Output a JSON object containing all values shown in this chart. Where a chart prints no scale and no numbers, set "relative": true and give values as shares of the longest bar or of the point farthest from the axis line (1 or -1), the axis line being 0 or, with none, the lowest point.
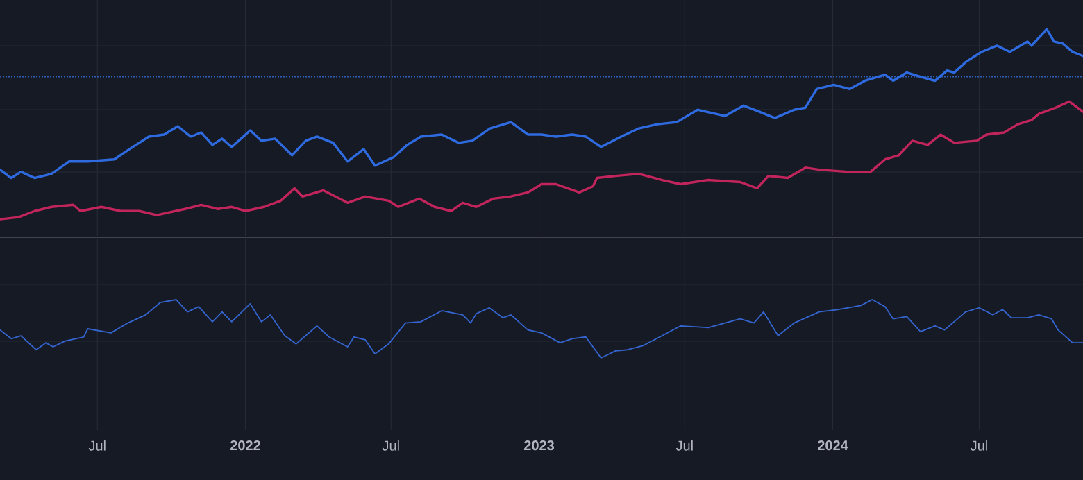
{
  "chart_data": [
    {
      "type": "line",
      "relative": true,
      "grid": true,
      "tick_labels": false,
      "xlim": [
        "2021-03-02",
        "2024-11-07"
      ],
      "xticks": [
        {
          "value": "2021-07-01",
          "label": null
        },
        {
          "value": "2022-01-01",
          "label": null
        },
        {
          "value": "2022-07-01",
          "label": null
        },
        {
          "value": "2023-01-01",
          "label": null
        },
        {
          "value": "2023-07-01",
          "label": null
        },
        {
          "value": "2024-01-01",
          "label": null
        },
        {
          "value": "2024-07-01",
          "label": null
        }
      ],
      "ref_lines": [
        {
          "axis": "y",
          "value": 0.77,
          "color": "#2f5fb8",
          "line_style": "dotted"
        }
      ],
      "series": [
        {
          "color": "#2f6be0",
          "x": [
            "2021-03-02",
            "2021-03-16",
            "2021-03-28",
            "2021-04-14",
            "2021-05-05",
            "2021-05-27",
            "2021-06-19",
            "2021-07-22",
            "2021-08-10",
            "2021-09-03",
            "2021-09-22",
            "2021-10-09",
            "2021-10-25",
            "2021-11-07",
            "2021-11-21",
            "2021-12-03",
            "2021-12-15",
            "2022-01-07",
            "2022-01-21",
            "2022-02-07",
            "2022-02-28",
            "2022-03-17",
            "2022-03-31",
            "2022-04-20",
            "2022-05-08",
            "2022-05-28",
            "2022-06-11",
            "2022-07-04",
            "2022-07-21",
            "2022-08-07",
            "2022-09-02",
            "2022-09-23",
            "2022-10-10",
            "2022-11-01",
            "2022-11-27",
            "2022-12-18",
            "2023-01-04",
            "2023-01-22",
            "2023-02-11",
            "2023-02-28",
            "2023-03-19",
            "2023-04-13",
            "2023-05-05",
            "2023-05-28",
            "2023-06-21",
            "2023-07-17",
            "2023-08-20",
            "2023-09-12",
            "2023-10-02",
            "2023-10-21",
            "2023-11-14",
            "2023-11-28",
            "2023-12-12",
            "2024-01-02",
            "2024-01-22",
            "2024-02-10",
            "2024-03-06",
            "2024-03-16",
            "2024-04-02",
            "2024-04-19",
            "2024-05-07",
            "2024-05-22",
            "2024-05-31",
            "2024-06-14",
            "2024-07-04",
            "2024-07-23",
            "2024-08-08",
            "2024-08-30",
            "2024-09-04",
            "2024-09-23",
            "2024-10-02",
            "2024-10-13",
            "2024-10-25",
            "2024-11-07"
          ],
          "values": [
            0.32,
            0.28,
            0.31,
            0.28,
            0.3,
            0.36,
            0.36,
            0.37,
            0.42,
            0.48,
            0.49,
            0.53,
            0.48,
            0.5,
            0.44,
            0.47,
            0.43,
            0.51,
            0.46,
            0.47,
            0.39,
            0.46,
            0.48,
            0.45,
            0.36,
            0.42,
            0.34,
            0.38,
            0.44,
            0.48,
            0.49,
            0.45,
            0.46,
            0.52,
            0.55,
            0.49,
            0.49,
            0.48,
            0.49,
            0.48,
            0.43,
            0.48,
            0.52,
            0.54,
            0.55,
            0.61,
            0.58,
            0.63,
            0.6,
            0.57,
            0.61,
            0.62,
            0.71,
            0.73,
            0.71,
            0.75,
            0.78,
            0.75,
            0.79,
            0.77,
            0.75,
            0.8,
            0.79,
            0.84,
            0.89,
            0.92,
            0.89,
            0.94,
            0.92,
            1,
            0.94,
            0.93,
            0.89,
            0.87
          ]
        },
        {
          "color": "#c2255c",
          "x": [
            "2021-03-02",
            "2021-03-25",
            "2021-04-14",
            "2021-05-05",
            "2021-06-01",
            "2021-06-10",
            "2021-07-06",
            "2021-07-30",
            "2021-08-22",
            "2021-09-13",
            "2021-10-18",
            "2021-11-07",
            "2021-11-28",
            "2021-12-15",
            "2022-01-01",
            "2022-01-24",
            "2022-02-14",
            "2022-03-03",
            "2022-03-13",
            "2022-04-08",
            "2022-05-08",
            "2022-05-30",
            "2022-06-28",
            "2022-07-10",
            "2022-08-05",
            "2022-08-24",
            "2022-09-14",
            "2022-09-28",
            "2022-10-15",
            "2022-11-05",
            "2022-11-26",
            "2022-12-18",
            "2023-01-04",
            "2023-01-22",
            "2023-02-20",
            "2023-03-09",
            "2023-03-14",
            "2023-04-06",
            "2023-05-05",
            "2023-06-03",
            "2023-06-26",
            "2023-07-30",
            "2023-09-08",
            "2023-09-29",
            "2023-10-13",
            "2023-11-06",
            "2023-11-28",
            "2023-12-15",
            "2024-01-19",
            "2024-02-17",
            "2024-03-06",
            "2024-03-23",
            "2024-04-09",
            "2024-04-28",
            "2024-05-14",
            "2024-05-31",
            "2024-06-28",
            "2024-07-10",
            "2024-08-01",
            "2024-08-18",
            "2024-09-04",
            "2024-09-13",
            "2024-10-04",
            "2024-10-21",
            "2024-11-07"
          ],
          "values": [
            0.08,
            0.09,
            0.12,
            0.14,
            0.15,
            0.12,
            0.14,
            0.12,
            0.12,
            0.1,
            0.13,
            0.15,
            0.13,
            0.14,
            0.12,
            0.14,
            0.17,
            0.23,
            0.19,
            0.22,
            0.16,
            0.19,
            0.17,
            0.14,
            0.18,
            0.14,
            0.12,
            0.16,
            0.14,
            0.18,
            0.19,
            0.21,
            0.25,
            0.25,
            0.21,
            0.24,
            0.28,
            0.29,
            0.3,
            0.27,
            0.25,
            0.27,
            0.26,
            0.23,
            0.29,
            0.28,
            0.33,
            0.32,
            0.31,
            0.31,
            0.37,
            0.39,
            0.46,
            0.44,
            0.49,
            0.45,
            0.46,
            0.49,
            0.5,
            0.54,
            0.56,
            0.59,
            0.62,
            0.65,
            0.6
          ]
        }
      ]
    },
    {
      "type": "line",
      "relative": true,
      "grid": true,
      "tick_labels": "x",
      "xlim": [
        "2021-03-02",
        "2024-11-07"
      ],
      "xticks": [
        {
          "value": "2021-07-01",
          "label": "Jul"
        },
        {
          "value": "2022-01-01",
          "label": "2022"
        },
        {
          "value": "2022-07-01",
          "label": "Jul"
        },
        {
          "value": "2023-01-01",
          "label": "2023"
        },
        {
          "value": "2023-07-01",
          "label": "Jul"
        },
        {
          "value": "2024-01-01",
          "label": "2024"
        },
        {
          "value": "2024-07-01",
          "label": "Jul"
        }
      ],
      "series": [
        {
          "color": "#3565d0",
          "x": [
            "2021-03-02",
            "2021-03-16",
            "2021-03-28",
            "2021-04-16",
            "2021-04-28",
            "2021-05-07",
            "2021-05-22",
            "2021-06-14",
            "2021-06-19",
            "2021-07-18",
            "2021-08-08",
            "2021-08-30",
            "2021-09-17",
            "2021-10-07",
            "2021-10-21",
            "2021-11-04",
            "2021-11-21",
            "2021-12-03",
            "2021-12-15",
            "2022-01-07",
            "2022-01-21",
            "2022-02-01",
            "2022-02-19",
            "2022-03-05",
            "2022-03-31",
            "2022-04-15",
            "2022-05-08",
            "2022-05-16",
            "2022-05-30",
            "2022-06-11",
            "2022-06-28",
            "2022-07-19",
            "2022-08-07",
            "2022-09-02",
            "2022-09-28",
            "2022-10-08",
            "2022-10-15",
            "2022-10-31",
            "2022-11-17",
            "2022-11-27",
            "2022-12-18",
            "2023-01-04",
            "2023-01-27",
            "2023-02-11",
            "2023-02-28",
            "2023-03-19",
            "2023-04-06",
            "2023-04-21",
            "2023-05-10",
            "2023-05-31",
            "2023-06-26",
            "2023-07-30",
            "2023-09-08",
            "2023-09-25",
            "2023-10-07",
            "2023-10-25",
            "2023-11-14",
            "2023-12-15",
            "2024-01-07",
            "2024-02-05",
            "2024-02-19",
            "2024-03-06",
            "2024-03-16",
            "2024-04-02",
            "2024-04-19",
            "2024-05-07",
            "2024-05-19",
            "2024-06-14",
            "2024-07-01",
            "2024-07-18",
            "2024-07-30",
            "2024-08-10",
            "2024-08-30",
            "2024-09-13",
            "2024-09-29",
            "2024-10-07",
            "2024-10-25",
            "2024-11-07"
          ],
          "values": [
            0.48,
            0.33,
            0.38,
            0.14,
            0.26,
            0.19,
            0.29,
            0.36,
            0.5,
            0.43,
            0.6,
            0.74,
            0.95,
            1,
            0.79,
            0.88,
            0.62,
            0.79,
            0.62,
            0.93,
            0.62,
            0.74,
            0.38,
            0.24,
            0.55,
            0.36,
            0.19,
            0.36,
            0.31,
            0.07,
            0.24,
            0.6,
            0.62,
            0.81,
            0.74,
            0.6,
            0.76,
            0.86,
            0.69,
            0.74,
            0.48,
            0.43,
            0.26,
            0.33,
            0.36,
            0,
            0.12,
            0.14,
            0.21,
            0.36,
            0.55,
            0.52,
            0.67,
            0.6,
            0.79,
            0.38,
            0.6,
            0.79,
            0.83,
            0.9,
            1,
            0.88,
            0.67,
            0.71,
            0.45,
            0.55,
            0.48,
            0.79,
            0.86,
            0.74,
            0.83,
            0.69,
            0.69,
            0.74,
            0.67,
            0.48,
            0.26,
            0.26
          ]
        }
      ]
    }
  ]
}
